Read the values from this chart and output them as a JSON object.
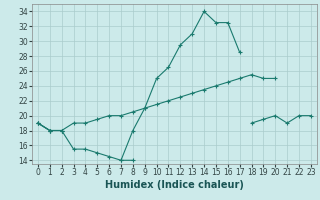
{
  "xlabel": "Humidex (Indice chaleur)",
  "bg_color": "#cceaea",
  "grid_color": "#aacccc",
  "line_color": "#1a7a6e",
  "x": [
    0,
    1,
    2,
    3,
    4,
    5,
    6,
    7,
    8,
    9,
    10,
    11,
    12,
    13,
    14,
    15,
    16,
    17,
    18,
    19,
    20,
    21,
    22,
    23
  ],
  "line1": [
    19,
    18,
    18,
    null,
    null,
    null,
    null,
    14,
    18,
    21,
    25,
    26.5,
    29.5,
    31,
    34,
    32.5,
    32.5,
    28.5,
    null,
    null,
    null,
    null,
    null,
    null
  ],
  "line2": [
    19,
    18,
    18,
    19,
    19,
    19.5,
    20,
    20,
    20.5,
    21,
    21.5,
    22,
    22.5,
    23,
    23.5,
    24,
    24.5,
    25,
    25.5,
    25,
    25,
    null,
    null,
    null
  ],
  "line3": [
    19,
    18,
    18,
    15.5,
    15.5,
    15,
    14.5,
    14,
    14,
    null,
    null,
    null,
    null,
    null,
    null,
    null,
    null,
    null,
    19,
    19.5,
    20,
    19,
    20,
    20
  ],
  "xlim": [
    -0.5,
    23.5
  ],
  "ylim": [
    13.5,
    35
  ],
  "yticks": [
    14,
    16,
    18,
    20,
    22,
    24,
    26,
    28,
    30,
    32,
    34
  ],
  "xticks": [
    0,
    1,
    2,
    3,
    4,
    5,
    6,
    7,
    8,
    9,
    10,
    11,
    12,
    13,
    14,
    15,
    16,
    17,
    18,
    19,
    20,
    21,
    22,
    23
  ],
  "tick_fontsize": 5.5,
  "xlabel_fontsize": 7
}
